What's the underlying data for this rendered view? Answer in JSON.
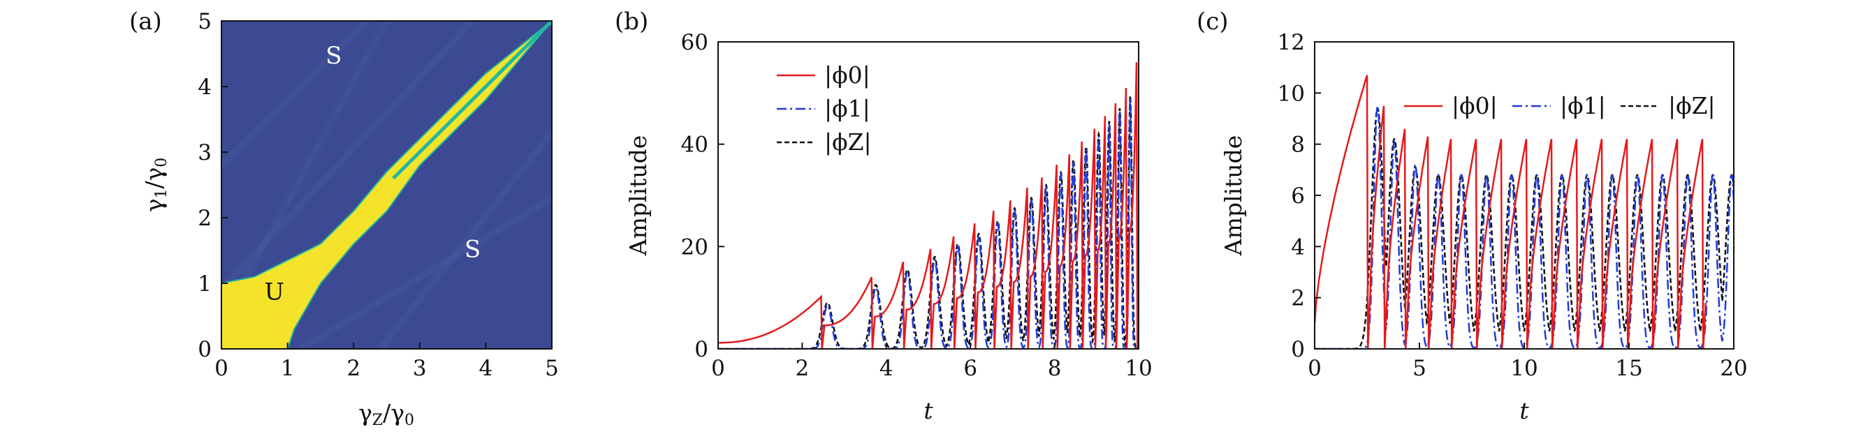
{
  "chart_data": [
    {
      "panel": "(a)",
      "type": "heatmap",
      "xlabel": "γZ/γ0",
      "ylabel": "γ1/γ0",
      "xlim": [
        0,
        5
      ],
      "ylim": [
        0,
        5
      ],
      "xticks": [
        "0",
        "1",
        "2",
        "3",
        "4",
        "5"
      ],
      "yticks": [
        "0",
        "1",
        "2",
        "3",
        "4",
        "5"
      ],
      "colors": {
        "stable": "#3b4a92",
        "unstable": "#f5e32b",
        "edge": "#22b8a0"
      },
      "unstable_region": [
        [
          0,
          1.0
        ],
        [
          0.5,
          1.1
        ],
        [
          1.0,
          1.35
        ],
        [
          1.5,
          1.6
        ],
        [
          2.0,
          2.1
        ],
        [
          2.5,
          2.7
        ],
        [
          3.0,
          3.2
        ],
        [
          3.5,
          3.7
        ],
        [
          4.0,
          4.2
        ],
        [
          4.5,
          4.6
        ],
        [
          5.0,
          5.0
        ],
        [
          4.0,
          3.8
        ],
        [
          3.0,
          2.8
        ],
        [
          2.5,
          2.1
        ],
        [
          2.0,
          1.6
        ],
        [
          1.5,
          1.0
        ],
        [
          1.1,
          0.3
        ],
        [
          1.0,
          0
        ],
        [
          0,
          0
        ]
      ],
      "annotations": [
        {
          "text": "S",
          "x": 1.7,
          "y": 4.35
        },
        {
          "text": "S",
          "x": 3.8,
          "y": 1.4
        },
        {
          "text": "U",
          "x": 0.8,
          "y": 0.75
        }
      ]
    },
    {
      "panel": "(b)",
      "type": "line",
      "xlabel": "t",
      "ylabel": "Amplitude",
      "xlim": [
        0,
        10
      ],
      "ylim": [
        0,
        60
      ],
      "xticks": [
        0,
        2,
        4,
        6,
        8,
        10
      ],
      "yticks": [
        0,
        20,
        40,
        60
      ],
      "legend": "upper-left",
      "series": [
        {
          "name": "|ϕ0|",
          "color": "#e41a1c",
          "style": "solid",
          "peaks_t": [
            2.45,
            3.65,
            4.4,
            5.05,
            5.6,
            6.1,
            6.55,
            6.95,
            7.35,
            7.7,
            8.05,
            8.35,
            8.65,
            8.95,
            9.2,
            9.45,
            9.7,
            9.95
          ],
          "peaks_v": [
            10.2,
            14,
            17,
            19.5,
            22,
            24.5,
            27,
            29,
            31.5,
            33.5,
            36,
            38,
            40.5,
            43,
            45.5,
            48,
            51,
            56
          ]
        },
        {
          "name": "|ϕ1|",
          "color": "#1f3bd9",
          "style": "dash-dot",
          "peaks_t": [
            2.6,
            3.75,
            4.5,
            5.15,
            5.7,
            6.2,
            6.65,
            7.05,
            7.45,
            7.8,
            8.15,
            8.45,
            8.75,
            9.05,
            9.3,
            9.55,
            9.8
          ],
          "peaks_v": [
            8.5,
            12,
            15,
            17.5,
            20,
            22,
            24.5,
            27,
            29,
            31.5,
            34,
            36.5,
            39,
            41.5,
            44,
            46.5,
            49
          ]
        },
        {
          "name": "|ϕZ|",
          "color": "#111111",
          "style": "dashed",
          "peaks_t": [
            2.6,
            3.75,
            4.5,
            5.15,
            5.7,
            6.2,
            6.65,
            7.05,
            7.45,
            7.8,
            8.15,
            8.45,
            8.75,
            9.05,
            9.3,
            9.55,
            9.8
          ],
          "peaks_v": [
            9,
            12.5,
            15.5,
            18,
            20.5,
            22.5,
            25,
            27.5,
            29.5,
            32,
            34.5,
            37,
            39.5,
            42,
            44.5,
            47,
            49.5
          ]
        }
      ]
    },
    {
      "panel": "(c)",
      "type": "line",
      "xlabel": "t",
      "ylabel": "Amplitude",
      "xlim": [
        0,
        20
      ],
      "ylim": [
        0,
        12
      ],
      "xticks": [
        0,
        5,
        10,
        15,
        20
      ],
      "yticks": [
        0,
        2,
        4,
        6,
        8,
        10,
        12
      ],
      "legend": "top",
      "series": [
        {
          "name": "|ϕ0|",
          "color": "#e41a1c",
          "style": "solid",
          "peaks_t": [
            2.5,
            3.3,
            4.3,
            5.4,
            6.5,
            7.7,
            8.9,
            10.1,
            11.3,
            12.5,
            13.7,
            14.9,
            16.1,
            17.3,
            18.5
          ],
          "peaks_v": [
            10.7,
            9.5,
            8.6,
            8.3,
            8.2,
            8.2,
            8.2,
            8.2,
            8.2,
            8.2,
            8.2,
            8.2,
            8.2,
            8.2,
            8.2
          ]
        },
        {
          "name": "|ϕ1|",
          "color": "#1f3bd9",
          "style": "dash-dot",
          "peaks_t": [
            3.0,
            3.8,
            4.8,
            5.9,
            7.0,
            8.2,
            9.4,
            10.6,
            11.8,
            13.0,
            14.2,
            15.4,
            16.6,
            17.8,
            19.0,
            19.9
          ],
          "peaks_v": [
            9.5,
            8.1,
            7.2,
            6.8,
            6.8,
            6.8,
            6.8,
            6.8,
            6.8,
            6.8,
            6.8,
            6.8,
            6.8,
            6.8,
            6.8,
            6.8
          ]
        },
        {
          "name": "|ϕZ|",
          "color": "#111111",
          "style": "dashed",
          "peaks_t": [
            3.0,
            3.8,
            4.8,
            5.9,
            7.0,
            8.2,
            9.4,
            10.6,
            11.8,
            13.0,
            14.2,
            15.4,
            16.6,
            17.8,
            19.0,
            19.9
          ],
          "peaks_v": [
            9.4,
            8.2,
            7.1,
            6.8,
            6.8,
            6.8,
            6.8,
            6.8,
            6.8,
            6.8,
            6.8,
            6.8,
            6.8,
            6.8,
            6.8,
            6.8
          ]
        }
      ]
    }
  ]
}
